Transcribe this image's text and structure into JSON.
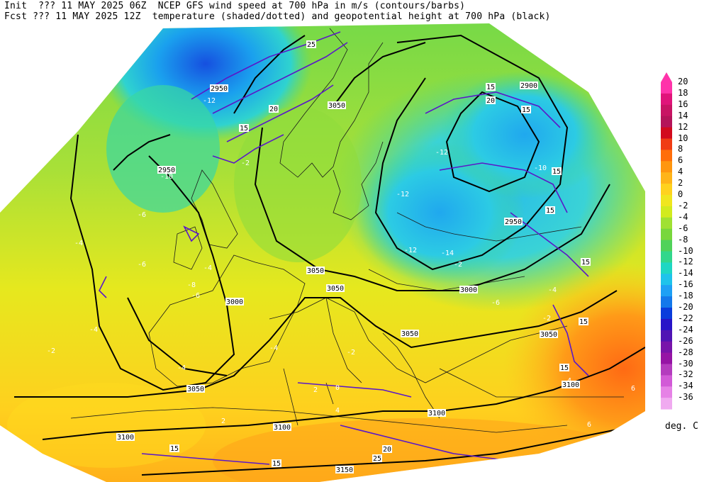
{
  "header": {
    "line1": "Init  ??? 11 MAY 2025 06Z  NCEP GFS wind speed at 700 hPa in m/s (contours/barbs)",
    "line2": "Fcst ??? 11 MAY 2025 12Z  temperature (shaded/dotted) and geopotential height at 700 hPa (black)"
  },
  "colorbar": {
    "units": "deg. C",
    "levels": [
      "20",
      "18",
      "16",
      "14",
      "12",
      "10",
      "8",
      "6",
      "4",
      "2",
      "0",
      "-2",
      "-4",
      "-6",
      "-8",
      "-10",
      "-12",
      "-14",
      "-16",
      "-18",
      "-20",
      "-22",
      "-24",
      "-26",
      "-28",
      "-30",
      "-32",
      "-34",
      "-36"
    ],
    "colors": [
      "#ff33aa",
      "#e0147a",
      "#c81464",
      "#b4145a",
      "#d20a1e",
      "#f03c14",
      "#ff6e0a",
      "#ff960f",
      "#ffb419",
      "#ffd21e",
      "#f0e61e",
      "#d2eb1e",
      "#a0e132",
      "#78d73c",
      "#50d25a",
      "#32d78c",
      "#1ed7c3",
      "#1ec3eb",
      "#1ea0f5",
      "#1478eb",
      "#0a3cdc",
      "#2814c8",
      "#5014b4",
      "#7814aa",
      "#9614a5",
      "#b43cbe",
      "#d25ad7",
      "#e682e6",
      "#f0aaf0"
    ]
  },
  "contour_labels": {
    "height": [
      "2900",
      "2950",
      "3000",
      "3050",
      "3100",
      "3150"
    ],
    "temperature": [
      "-36",
      "-34",
      "-32",
      "-30",
      "-28",
      "-26",
      "-24",
      "-22",
      "-20",
      "-18",
      "-16",
      "-14",
      "-12",
      "-10",
      "-8",
      "-6",
      "-4",
      "-2",
      "0",
      "2",
      "4",
      "6",
      "8"
    ],
    "wind": [
      "15",
      "20",
      "25"
    ]
  },
  "map_labels": [
    {
      "text": "2950",
      "kind": "height"
    },
    {
      "text": "2900",
      "kind": "height"
    },
    {
      "text": "3050",
      "kind": "height"
    },
    {
      "text": "2950",
      "kind": "height"
    },
    {
      "text": "3050",
      "kind": "height"
    },
    {
      "text": "3050",
      "kind": "height"
    },
    {
      "text": "3000",
      "kind": "height"
    },
    {
      "text": "3000",
      "kind": "height"
    },
    {
      "text": "3050",
      "kind": "height"
    },
    {
      "text": "3050",
      "kind": "height"
    },
    {
      "text": "3050",
      "kind": "height"
    },
    {
      "text": "3100",
      "kind": "height"
    },
    {
      "text": "3100",
      "kind": "height"
    },
    {
      "text": "3100",
      "kind": "height"
    },
    {
      "text": "3150",
      "kind": "height"
    },
    {
      "text": "2950",
      "kind": "height"
    },
    {
      "text": "3100",
      "kind": "height"
    },
    {
      "text": "15",
      "kind": "wind"
    },
    {
      "text": "20",
      "kind": "wind"
    },
    {
      "text": "25",
      "kind": "wind"
    },
    {
      "text": "15",
      "kind": "wind"
    },
    {
      "text": "20",
      "kind": "wind"
    },
    {
      "text": "15",
      "kind": "wind"
    },
    {
      "text": "15",
      "kind": "wind"
    },
    {
      "text": "15",
      "kind": "wind"
    },
    {
      "text": "15",
      "kind": "wind"
    },
    {
      "text": "15",
      "kind": "wind"
    },
    {
      "text": "20",
      "kind": "wind"
    },
    {
      "text": "25",
      "kind": "wind"
    },
    {
      "text": "15",
      "kind": "wind"
    },
    {
      "text": "15",
      "kind": "wind"
    },
    {
      "text": "15",
      "kind": "wind"
    },
    {
      "text": "-4",
      "kind": "temp"
    },
    {
      "text": "-6",
      "kind": "temp"
    },
    {
      "text": "-4",
      "kind": "temp"
    },
    {
      "text": "-2",
      "kind": "temp"
    },
    {
      "text": "-4",
      "kind": "temp"
    },
    {
      "text": "-12",
      "kind": "temp"
    },
    {
      "text": "-10",
      "kind": "temp"
    },
    {
      "text": "-12",
      "kind": "temp"
    },
    {
      "text": "-14",
      "kind": "temp"
    },
    {
      "text": "-12",
      "kind": "temp"
    },
    {
      "text": "-10",
      "kind": "temp"
    },
    {
      "text": "-6",
      "kind": "temp"
    },
    {
      "text": "-4",
      "kind": "temp"
    },
    {
      "text": "-2",
      "kind": "temp"
    },
    {
      "text": "0",
      "kind": "temp"
    },
    {
      "text": "2",
      "kind": "temp"
    },
    {
      "text": "4",
      "kind": "temp"
    },
    {
      "text": "6",
      "kind": "temp"
    },
    {
      "text": "-2",
      "kind": "temp"
    },
    {
      "text": "-4",
      "kind": "temp"
    },
    {
      "text": "-6",
      "kind": "temp"
    },
    {
      "text": "-8",
      "kind": "temp"
    },
    {
      "text": "-6",
      "kind": "temp"
    },
    {
      "text": "-4",
      "kind": "temp"
    },
    {
      "text": "-2",
      "kind": "temp"
    },
    {
      "text": "-12",
      "kind": "temp"
    },
    {
      "text": "-2",
      "kind": "temp"
    },
    {
      "text": "2",
      "kind": "temp"
    },
    {
      "text": "4",
      "kind": "temp"
    },
    {
      "text": "6",
      "kind": "temp"
    }
  ]
}
